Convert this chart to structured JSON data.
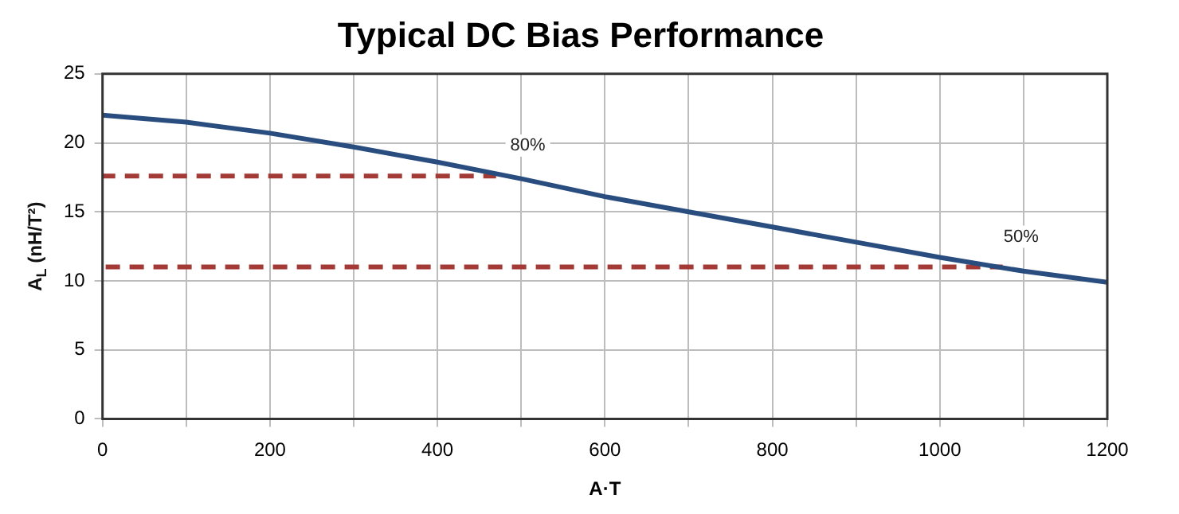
{
  "chart_data": {
    "type": "line",
    "title": "Typical DC Bias Performance",
    "xlabel": "A·T",
    "ylabel": "A$_{L}$ (nH/T²)",
    "xlim": [
      0,
      1200
    ],
    "ylim": [
      0,
      25
    ],
    "xticks": [
      0,
      {
        "value": 100,
        "label": null
      },
      200,
      {
        "value": 300,
        "label": null
      },
      400,
      {
        "value": 500,
        "label": null
      },
      600,
      {
        "value": 700,
        "label": null
      },
      800,
      {
        "value": 900,
        "label": null
      },
      1000,
      {
        "value": 1100,
        "label": null
      },
      1200
    ],
    "yticks": [
      0,
      5,
      10,
      15,
      20,
      25
    ],
    "grid": true,
    "legend": false,
    "marker": "none",
    "series": [
      {
        "color": "#2a4d80",
        "x": [
          0,
          100,
          200,
          300,
          400,
          500,
          600,
          700,
          800,
          900,
          1000,
          1100,
          1200
        ],
        "values": [
          22.0,
          21.5,
          20.7,
          19.7,
          18.6,
          17.4,
          16.1,
          15.0,
          13.9,
          12.8,
          11.7,
          10.7,
          9.9
        ],
        "line_style": "solid"
      },
      {
        "color": "#a33a35",
        "x": [
          0,
          470
        ],
        "values": [
          17.6,
          17.6
        ],
        "line_style": "dashed"
      },
      {
        "color": "#a33a35",
        "x": [
          0,
          1075
        ],
        "values": [
          11.0,
          11.0
        ],
        "line_style": "dashed"
      }
    ],
    "annotations": [
      {
        "text": "80%",
        "x": 508,
        "y": 19.8
      },
      {
        "text": "50%",
        "x": 1097,
        "y": 13.2
      }
    ]
  }
}
